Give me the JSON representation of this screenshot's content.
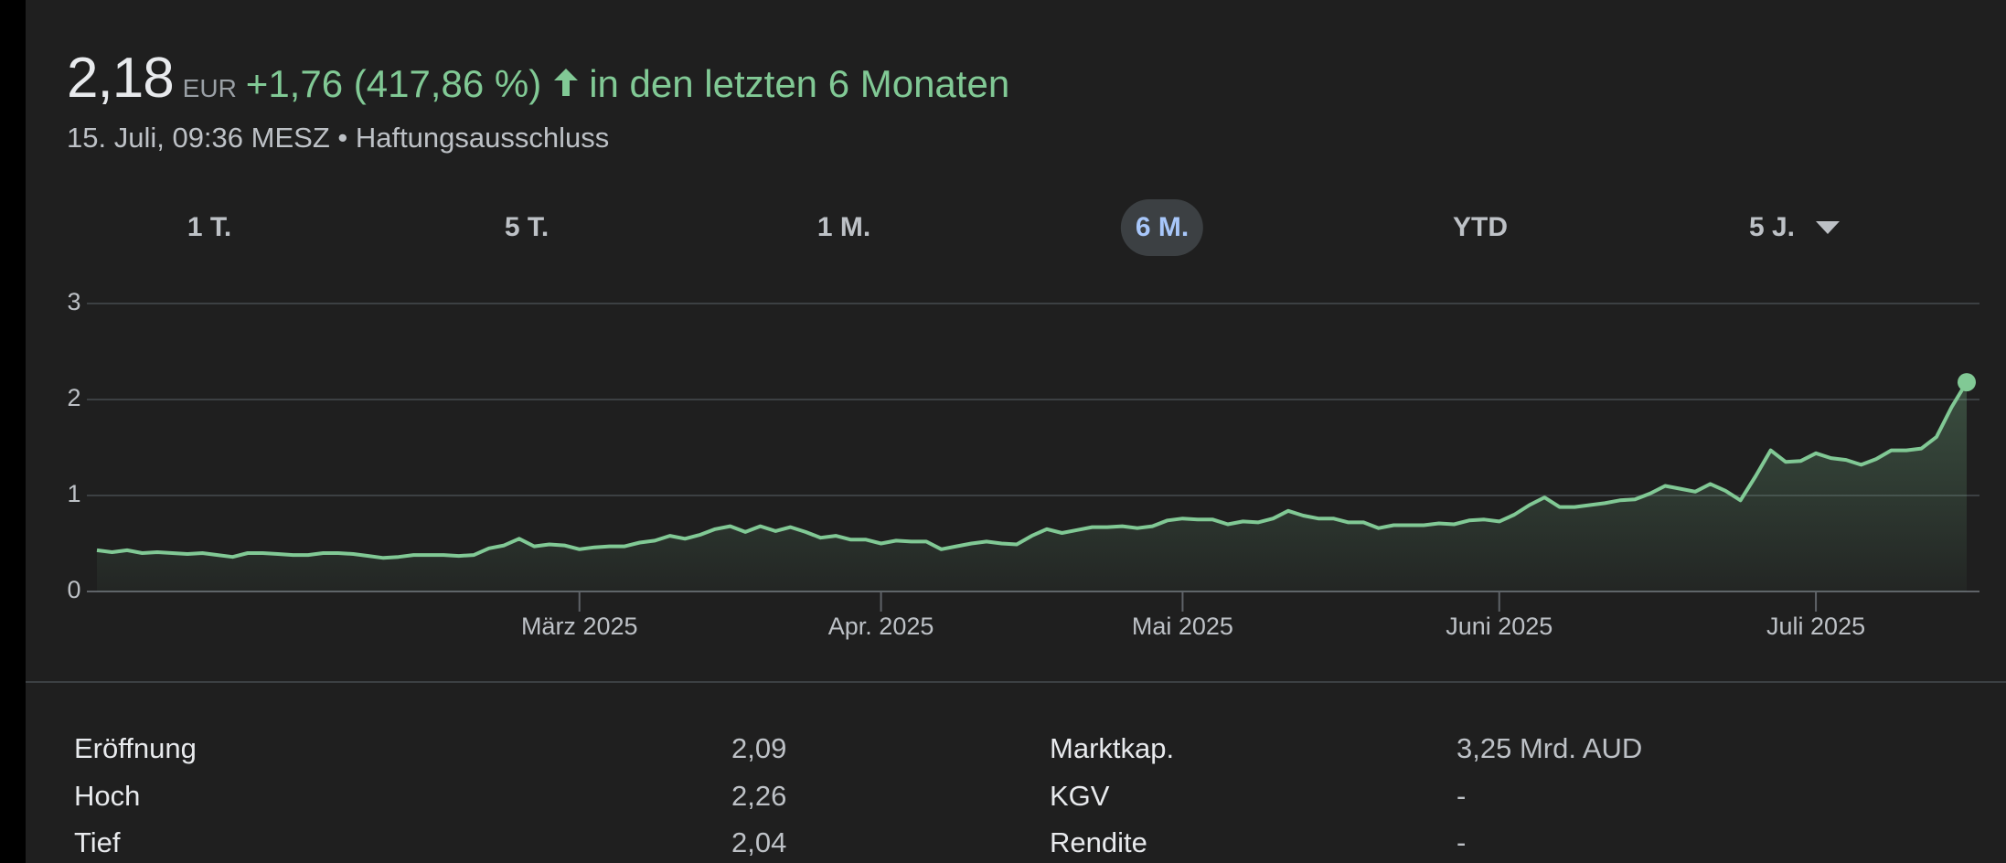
{
  "header": {
    "price": "2,18",
    "currency": "EUR",
    "change": "+1,76 (417,86 %)",
    "period": "in den letzten 6 Monaten",
    "subtitle": "15. Juli, 09:36 MESZ • Haftungsausschluss"
  },
  "ranges": [
    "1 T.",
    "5 T.",
    "1 M.",
    "6 M.",
    "YTD",
    "5 J."
  ],
  "selected_range": 3,
  "chart_data": {
    "type": "line",
    "color": "#81c995",
    "values": [
      0.43,
      0.41,
      0.43,
      0.4,
      0.41,
      0.4,
      0.39,
      0.4,
      0.38,
      0.36,
      0.4,
      0.4,
      0.39,
      0.38,
      0.38,
      0.4,
      0.4,
      0.39,
      0.37,
      0.35,
      0.36,
      0.38,
      0.38,
      0.38,
      0.37,
      0.38,
      0.45,
      0.48,
      0.55,
      0.47,
      0.49,
      0.48,
      0.44,
      0.46,
      0.47,
      0.47,
      0.51,
      0.53,
      0.58,
      0.55,
      0.59,
      0.65,
      0.68,
      0.62,
      0.68,
      0.63,
      0.67,
      0.62,
      0.56,
      0.58,
      0.54,
      0.54,
      0.5,
      0.53,
      0.52,
      0.52,
      0.44,
      0.47,
      0.5,
      0.52,
      0.5,
      0.49,
      0.58,
      0.65,
      0.61,
      0.64,
      0.67,
      0.67,
      0.68,
      0.66,
      0.68,
      0.74,
      0.76,
      0.75,
      0.75,
      0.7,
      0.73,
      0.72,
      0.76,
      0.84,
      0.79,
      0.76,
      0.76,
      0.72,
      0.72,
      0.66,
      0.69,
      0.69,
      0.69,
      0.71,
      0.7,
      0.74,
      0.75,
      0.73,
      0.8,
      0.9,
      0.98,
      0.88,
      0.88,
      0.9,
      0.92,
      0.95,
      0.96,
      1.02,
      1.1,
      1.07,
      1.04,
      1.12,
      1.05,
      0.95,
      1.2,
      1.47,
      1.35,
      1.36,
      1.44,
      1.39,
      1.37,
      1.32,
      1.38,
      1.47,
      1.47,
      1.49,
      1.61,
      1.92,
      2.18
    ],
    "xlim": [
      0,
      124
    ],
    "xticks": [
      {
        "value": 32,
        "label": "März 2025"
      },
      {
        "value": 52,
        "label": "Apr. 2025"
      },
      {
        "value": 72,
        "label": "Mai 2025"
      },
      {
        "value": 93,
        "label": "Juni 2025"
      },
      {
        "value": 114,
        "label": "Juli 2025"
      }
    ],
    "ylim": [
      0,
      3
    ],
    "yticks": [
      0,
      1,
      2,
      3
    ],
    "grid": true
  },
  "stats": [
    [
      "Eröffnung",
      "2,09",
      "Marktkap.",
      "3,25 Mrd. AUD"
    ],
    [
      "Hoch",
      "2,26",
      "KGV",
      "-"
    ],
    [
      "Tief",
      "2,04",
      "Rendite",
      "-"
    ]
  ]
}
